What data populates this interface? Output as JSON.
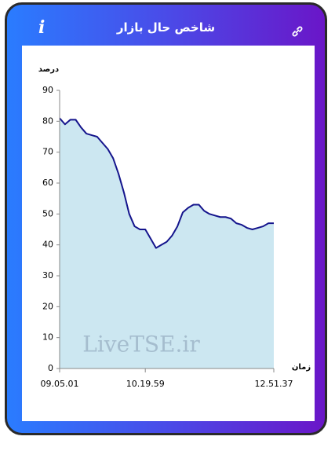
{
  "header_title": "شاخص حال بازار",
  "info_label": "i",
  "chart_data": {
    "type": "area",
    "y_label": "درصد",
    "x_label": "زمان",
    "watermark": "LiveTSE.ir",
    "categories": [
      "09.05.01",
      null,
      null,
      null,
      null,
      null,
      null,
      null,
      null,
      null,
      null,
      null,
      null,
      null,
      null,
      null,
      "10.19.59",
      null,
      null,
      null,
      null,
      null,
      null,
      null,
      null,
      null,
      null,
      null,
      null,
      null,
      null,
      null,
      null,
      null,
      null,
      null,
      null,
      null,
      null,
      null,
      "12.51.37"
    ],
    "values": [
      81,
      79,
      80.5,
      80.5,
      78,
      76,
      75.5,
      75,
      73,
      71,
      68,
      63,
      57,
      50,
      46,
      45,
      45,
      42,
      39,
      40,
      41,
      43,
      46,
      50.5,
      52,
      53,
      53,
      51,
      50,
      49.5,
      49,
      49,
      48.5,
      47,
      46.5,
      45.5,
      45,
      45.5,
      46,
      47,
      47
    ],
    "color": "#14148c",
    "fill": "#cce7f1",
    "ylim": [
      0,
      90
    ],
    "yticks": [
      0,
      10,
      20,
      30,
      40,
      50,
      60,
      70,
      80,
      90
    ]
  }
}
